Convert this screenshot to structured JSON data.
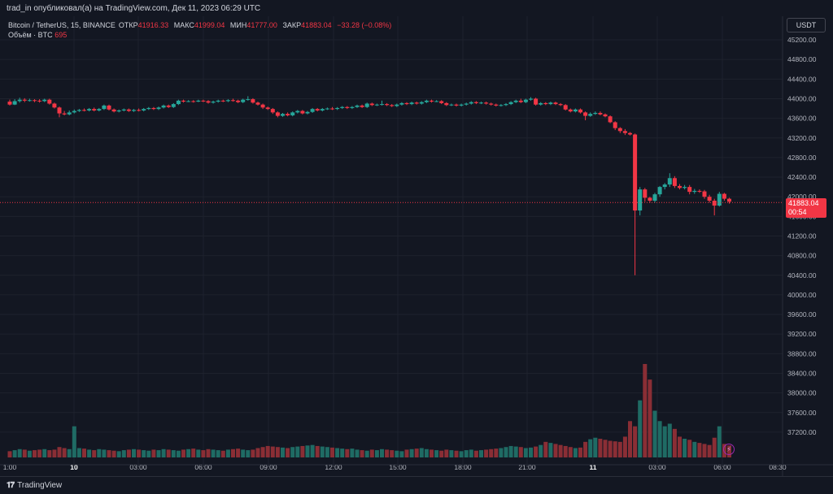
{
  "header": {
    "publish_text": "trad_in опубликовал(а) на TradingView.com, Дек 11, 2023 06:29 UTC"
  },
  "legend": {
    "symbol": "Bitcoin / TetherUS, 15, BINANCE",
    "open_label": "ОТКР",
    "open_value": "41916.33",
    "high_label": "МАКС",
    "high_value": "41999.04",
    "low_label": "МИН",
    "low_value": "41777.00",
    "close_label": "ЗАКР",
    "close_value": "41883.04",
    "change": "−33.28 (−0.08%)",
    "volume_label": "Объём · BTC",
    "volume_value": "695"
  },
  "currency_button": "USDT",
  "last_price": {
    "value": "41883.04",
    "countdown": "00:54"
  },
  "footer": {
    "brand": "TradingView"
  },
  "colors": {
    "up": "#26a69a",
    "down": "#f23645",
    "vol_up": "#1f6b64",
    "vol_down": "#8a2e35",
    "grid": "#1e222d",
    "background": "#131722"
  },
  "chart_data": {
    "type": "candlestick",
    "symbol": "BTCUSDT",
    "interval": "15",
    "ylim": [
      36900,
      45300
    ],
    "y_ticks": [
      "45200.00",
      "44800.00",
      "44400.00",
      "44000.00",
      "43600.00",
      "43200.00",
      "42800.00",
      "42400.00",
      "42000.00",
      "41600.00",
      "41200.00",
      "40800.00",
      "40400.00",
      "40000.00",
      "39600.00",
      "39200.00",
      "38800.00",
      "38400.00",
      "38000.00",
      "37600.00",
      "37200.00"
    ],
    "x_ticks": [
      "1:00",
      "10",
      "03:00",
      "06:00",
      "09:00",
      "12:00",
      "15:00",
      "18:00",
      "21:00",
      "11",
      "03:00",
      "06:00",
      "08:30"
    ],
    "x_tick_bold": [
      false,
      true,
      false,
      false,
      false,
      false,
      false,
      false,
      false,
      true,
      false,
      false,
      false
    ],
    "current_price": 41883.04,
    "candles": [
      [
        43940,
        43880,
        43980,
        43860
      ],
      [
        43880,
        43950,
        43990,
        43870
      ],
      [
        43950,
        43980,
        44020,
        43920
      ],
      [
        43980,
        43960,
        44010,
        43930
      ],
      [
        43960,
        43970,
        44000,
        43940
      ],
      [
        43970,
        43960,
        43990,
        43930
      ],
      [
        43960,
        43950,
        43990,
        43920
      ],
      [
        43950,
        43980,
        44000,
        43930
      ],
      [
        43980,
        43900,
        44000,
        43880
      ],
      [
        43900,
        43820,
        43920,
        43800
      ],
      [
        43820,
        43700,
        43840,
        43620
      ],
      [
        43700,
        43680,
        43750,
        43660
      ],
      [
        43680,
        43720,
        43760,
        43660
      ],
      [
        43720,
        43750,
        43780,
        43700
      ],
      [
        43750,
        43770,
        43790,
        43730
      ],
      [
        43770,
        43760,
        43800,
        43740
      ],
      [
        43760,
        43790,
        43810,
        43740
      ],
      [
        43790,
        43760,
        43820,
        43740
      ],
      [
        43760,
        43790,
        43810,
        43740
      ],
      [
        43790,
        43860,
        43880,
        43770
      ],
      [
        43860,
        43780,
        43880,
        43760
      ],
      [
        43780,
        43740,
        43800,
        43720
      ],
      [
        43740,
        43760,
        43780,
        43720
      ],
      [
        43760,
        43780,
        43800,
        43740
      ],
      [
        43780,
        43750,
        43800,
        43730
      ],
      [
        43750,
        43770,
        43790,
        43730
      ],
      [
        43770,
        43760,
        43800,
        43740
      ],
      [
        43760,
        43790,
        43810,
        43740
      ],
      [
        43790,
        43810,
        43830,
        43770
      ],
      [
        43810,
        43790,
        43830,
        43770
      ],
      [
        43790,
        43820,
        43840,
        43770
      ],
      [
        43820,
        43860,
        43880,
        43800
      ],
      [
        43860,
        43830,
        43880,
        43810
      ],
      [
        43830,
        43890,
        43910,
        43810
      ],
      [
        43890,
        43960,
        43980,
        43870
      ],
      [
        43960,
        43940,
        43980,
        43920
      ],
      [
        43940,
        43950,
        43970,
        43930
      ],
      [
        43950,
        43940,
        43970,
        43920
      ],
      [
        43940,
        43960,
        43980,
        43930
      ],
      [
        43960,
        43950,
        43980,
        43930
      ],
      [
        43950,
        43920,
        43970,
        43900
      ],
      [
        43920,
        43940,
        43960,
        43900
      ],
      [
        43940,
        43960,
        43980,
        43920
      ],
      [
        43960,
        43950,
        43980,
        43930
      ],
      [
        43950,
        43970,
        43990,
        43930
      ],
      [
        43970,
        43960,
        44000,
        43940
      ],
      [
        43960,
        43930,
        43980,
        43910
      ],
      [
        43930,
        43980,
        44000,
        43910
      ],
      [
        43980,
        43990,
        44050,
        43960
      ],
      [
        43990,
        43920,
        44010,
        43900
      ],
      [
        43920,
        43880,
        43940,
        43860
      ],
      [
        43880,
        43820,
        43900,
        43790
      ],
      [
        43820,
        43790,
        43840,
        43770
      ],
      [
        43790,
        43720,
        43810,
        43690
      ],
      [
        43720,
        43650,
        43740,
        43620
      ],
      [
        43650,
        43690,
        43710,
        43630
      ],
      [
        43690,
        43660,
        43720,
        43640
      ],
      [
        43660,
        43720,
        43740,
        43640
      ],
      [
        43720,
        43750,
        43770,
        43700
      ],
      [
        43750,
        43700,
        43770,
        43680
      ],
      [
        43700,
        43730,
        43750,
        43680
      ],
      [
        43730,
        43790,
        43810,
        43710
      ],
      [
        43790,
        43760,
        43810,
        43740
      ],
      [
        43760,
        43790,
        43810,
        43740
      ],
      [
        43790,
        43800,
        43820,
        43770
      ],
      [
        43800,
        43790,
        43830,
        43770
      ],
      [
        43790,
        43810,
        43830,
        43770
      ],
      [
        43810,
        43830,
        43850,
        43790
      ],
      [
        43830,
        43810,
        43850,
        43790
      ],
      [
        43810,
        43830,
        43850,
        43790
      ],
      [
        43830,
        43860,
        43880,
        43810
      ],
      [
        43860,
        43830,
        43880,
        43810
      ],
      [
        43830,
        43900,
        43920,
        43810
      ],
      [
        43900,
        43870,
        43920,
        43850
      ],
      [
        43870,
        43880,
        43900,
        43850
      ],
      [
        43880,
        43890,
        43960,
        43860
      ],
      [
        43890,
        43870,
        43910,
        43850
      ],
      [
        43870,
        43850,
        43890,
        43830
      ],
      [
        43850,
        43880,
        43900,
        43830
      ],
      [
        43880,
        43910,
        43930,
        43860
      ],
      [
        43910,
        43890,
        43930,
        43870
      ],
      [
        43890,
        43920,
        43940,
        43870
      ],
      [
        43920,
        43900,
        43940,
        43880
      ],
      [
        43900,
        43930,
        43950,
        43880
      ],
      [
        43930,
        43960,
        43980,
        43910
      ],
      [
        43960,
        43940,
        43980,
        43920
      ],
      [
        43940,
        43950,
        43970,
        43930
      ],
      [
        43950,
        43910,
        43970,
        43890
      ],
      [
        43910,
        43870,
        43930,
        43850
      ],
      [
        43870,
        43880,
        43900,
        43850
      ],
      [
        43880,
        43860,
        43900,
        43840
      ],
      [
        43860,
        43880,
        43900,
        43840
      ],
      [
        43880,
        43900,
        43920,
        43860
      ],
      [
        43900,
        43930,
        43950,
        43880
      ],
      [
        43930,
        43910,
        43950,
        43890
      ],
      [
        43910,
        43920,
        43940,
        43890
      ],
      [
        43920,
        43900,
        43940,
        43880
      ],
      [
        43900,
        43880,
        43920,
        43860
      ],
      [
        43880,
        43860,
        43900,
        43840
      ],
      [
        43860,
        43870,
        43890,
        43840
      ],
      [
        43870,
        43890,
        43910,
        43850
      ],
      [
        43890,
        43930,
        43950,
        43870
      ],
      [
        43930,
        43960,
        43980,
        43910
      ],
      [
        43960,
        43930,
        44000,
        43910
      ],
      [
        43930,
        43980,
        44000,
        43910
      ],
      [
        43980,
        44000,
        44030,
        43960
      ],
      [
        44000,
        43880,
        44020,
        43860
      ],
      [
        43880,
        43910,
        43930,
        43860
      ],
      [
        43910,
        43890,
        43930,
        43870
      ],
      [
        43890,
        43920,
        43940,
        43870
      ],
      [
        43920,
        43890,
        43940,
        43870
      ],
      [
        43890,
        43870,
        43910,
        43850
      ],
      [
        43870,
        43780,
        43890,
        43760
      ],
      [
        43780,
        43740,
        43800,
        43720
      ],
      [
        43740,
        43780,
        43800,
        43720
      ],
      [
        43780,
        43720,
        43800,
        43700
      ],
      [
        43720,
        43650,
        43740,
        43560
      ],
      [
        43650,
        43690,
        43720,
        43630
      ],
      [
        43690,
        43710,
        43740,
        43670
      ],
      [
        43710,
        43680,
        43740,
        43660
      ],
      [
        43680,
        43640,
        43700,
        43620
      ],
      [
        43640,
        43520,
        43660,
        43500
      ],
      [
        43520,
        43400,
        43540,
        43360
      ],
      [
        43400,
        43340,
        43420,
        43300
      ],
      [
        43340,
        43300,
        43380,
        43260
      ],
      [
        43300,
        43270,
        43320,
        43250
      ],
      [
        43270,
        41720,
        43290,
        40400
      ],
      [
        41720,
        42150,
        42200,
        41620
      ],
      [
        42150,
        41980,
        42180,
        41900
      ],
      [
        41980,
        41920,
        42000,
        41880
      ],
      [
        41920,
        42050,
        42080,
        41880
      ],
      [
        42050,
        42200,
        42220,
        42000
      ],
      [
        42200,
        42250,
        42280,
        42150
      ],
      [
        42250,
        42380,
        42480,
        42200
      ],
      [
        42380,
        42220,
        42420,
        42180
      ],
      [
        42220,
        42180,
        42260,
        42150
      ],
      [
        42180,
        42200,
        42240,
        42150
      ],
      [
        42200,
        42100,
        42240,
        42050
      ],
      [
        42100,
        42120,
        42160,
        42060
      ],
      [
        42120,
        42110,
        42150,
        42080
      ],
      [
        42110,
        42000,
        42140,
        41960
      ],
      [
        42000,
        41920,
        42040,
        41880
      ],
      [
        41920,
        41820,
        41960,
        41620
      ],
      [
        41820,
        42060,
        42100,
        41800
      ],
      [
        42060,
        41960,
        42080,
        41920
      ],
      [
        41960,
        41900,
        41980,
        41860
      ]
    ],
    "volumes": [
      120,
      140,
      160,
      150,
      130,
      140,
      150,
      160,
      140,
      150,
      200,
      180,
      160,
      600,
      180,
      170,
      150,
      140,
      160,
      150,
      140,
      130,
      120,
      140,
      150,
      160,
      150,
      140,
      130,
      150,
      140,
      160,
      150,
      140,
      130,
      150,
      160,
      170,
      150,
      140,
      160,
      150,
      140,
      130,
      150,
      160,
      170,
      150,
      140,
      150,
      180,
      200,
      220,
      210,
      200,
      190,
      180,
      200,
      210,
      220,
      230,
      240,
      220,
      210,
      200,
      190,
      180,
      170,
      160,
      170,
      150,
      140,
      130,
      150,
      140,
      160,
      150,
      140,
      130,
      120,
      150,
      160,
      170,
      180,
      160,
      150,
      140,
      130,
      150,
      140,
      130,
      120,
      140,
      150,
      130,
      140,
      150,
      160,
      170,
      180,
      200,
      220,
      210,
      200,
      180,
      190,
      210,
      240,
      300,
      280,
      260,
      240,
      220,
      200,
      180,
      190,
      300,
      350,
      380,
      360,
      340,
      320,
      310,
      300,
      400,
      700,
      600,
      1100,
      1800,
      1500,
      900,
      700,
      600,
      650,
      550,
      400,
      360,
      340,
      300,
      280,
      260,
      240,
      380,
      600,
      260,
      230
    ]
  }
}
